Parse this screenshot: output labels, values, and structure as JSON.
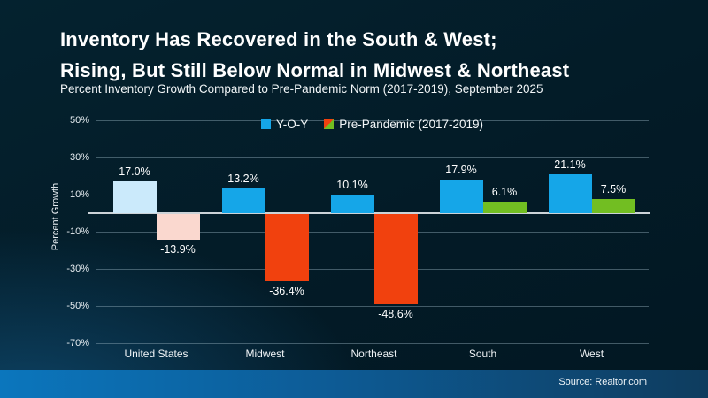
{
  "slide": {
    "title_line1": "Inventory Has Recovered in the South & West;",
    "title_line2": "Rising, But Still Below Normal in Midwest & Northeast",
    "subtitle": "Percent Inventory Growth Compared to Pre-Pandemic Norm (2017-2019), September 2025",
    "source": "Source: Realtor.com"
  },
  "colors": {
    "background": "#03202e",
    "yoy_blue": "#15a6e8",
    "yoy_blue_light": "#cbeafb",
    "neg_red": "#f1410e",
    "neg_red_light": "#fad8cf",
    "pos_green": "#72be22",
    "zero_line": "#ccd3d8",
    "gridline": "#8fa3ad",
    "footer_left": "#0b76bd",
    "footer_right": "#0e3c5e"
  },
  "chart_data": {
    "type": "bar",
    "title": "",
    "categories": [
      "United States",
      "Midwest",
      "Northeast",
      "South",
      "West"
    ],
    "series": [
      {
        "name": "Y-O-Y",
        "values": [
          17.0,
          13.2,
          10.1,
          17.9,
          21.1
        ],
        "labels": [
          "17.0%",
          "13.2%",
          "10.1%",
          "17.9%",
          "21.1%"
        ],
        "colors": [
          "#cbeafb",
          "#15a6e8",
          "#15a6e8",
          "#15a6e8",
          "#15a6e8"
        ],
        "legend_marker": "#15a6e8"
      },
      {
        "name": "Pre-Pandemic (2017-2019)",
        "values": [
          -13.9,
          -36.4,
          -48.6,
          6.1,
          7.5
        ],
        "labels": [
          "-13.9%",
          "-36.4%",
          "-48.6%",
          "6.1%",
          "7.5%"
        ],
        "colors": [
          "#fad8cf",
          "#f1410e",
          "#f1410e",
          "#72be22",
          "#72be22"
        ],
        "legend_marker": "split-red-green"
      }
    ],
    "xlabel": "",
    "ylabel": "Percent Growth",
    "yticks": [
      50,
      30,
      10,
      -10,
      -30,
      -50,
      -70
    ],
    "ytick_labels": [
      "50%",
      "30%",
      "10%",
      "-10%",
      "-30%",
      "-50%",
      "-70%"
    ],
    "ylim": [
      -75,
      55
    ],
    "grid": true,
    "legend_position": "top-center"
  }
}
